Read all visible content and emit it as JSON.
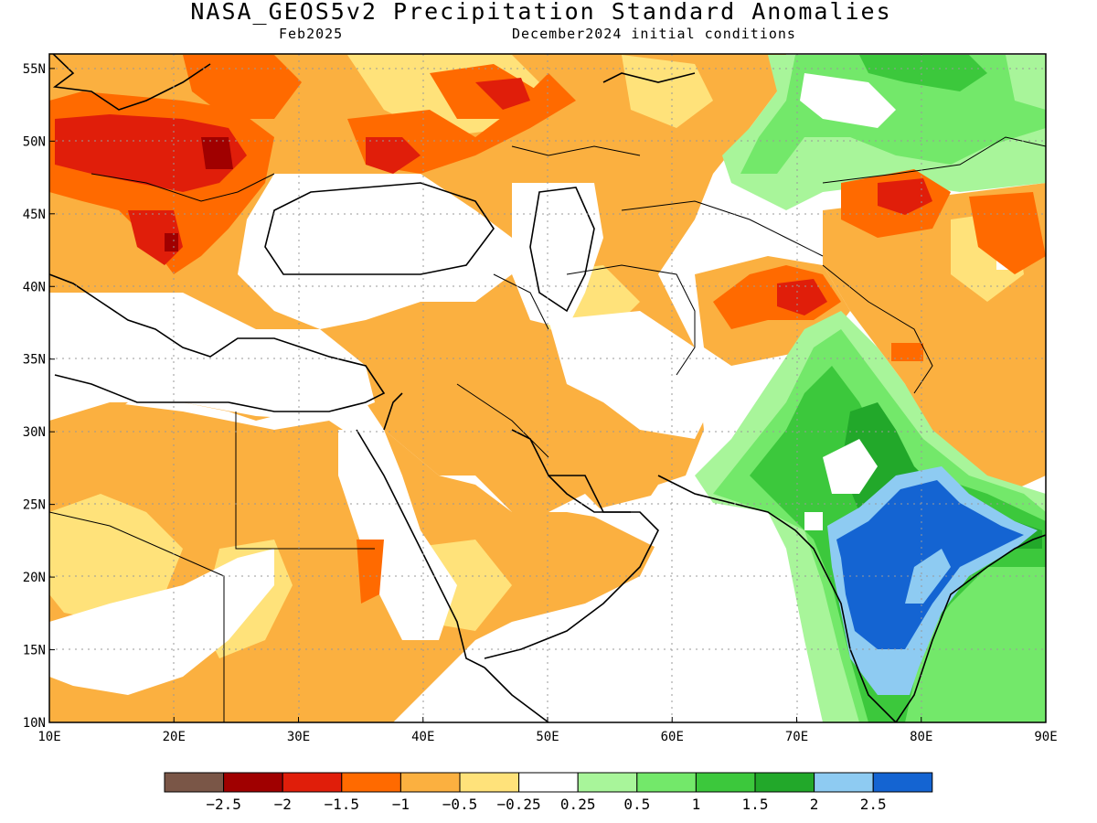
{
  "title": "NASA_GEOS5v2 Precipitation Standard Anomalies",
  "subtitle_left": "Feb2025",
  "subtitle_right": "December2024 initial conditions",
  "lon_ticks": [
    "10E",
    "20E",
    "30E",
    "40E",
    "50E",
    "60E",
    "70E",
    "80E",
    "90E"
  ],
  "lat_ticks": [
    "10N",
    "15N",
    "20N",
    "25N",
    "30N",
    "35N",
    "40N",
    "45N",
    "50N",
    "55N"
  ],
  "map_extent": {
    "lon": [
      10,
      90
    ],
    "lat": [
      10,
      56
    ]
  },
  "colorbar": {
    "colors": [
      "#7a5647",
      "#a00000",
      "#e01e0a",
      "#ff6a00",
      "#fbb040",
      "#ffe27a",
      "#ffffff",
      "#a8f59a",
      "#73e86a",
      "#3cc83c",
      "#22a82a",
      "#8ecbf2",
      "#1464d2"
    ],
    "labels": [
      "−2.5",
      "−2",
      "−1.5",
      "−1",
      "−0.5",
      "−0.25",
      "0.25",
      "0.5",
      "1",
      "1.5",
      "2",
      "2.5"
    ]
  }
}
